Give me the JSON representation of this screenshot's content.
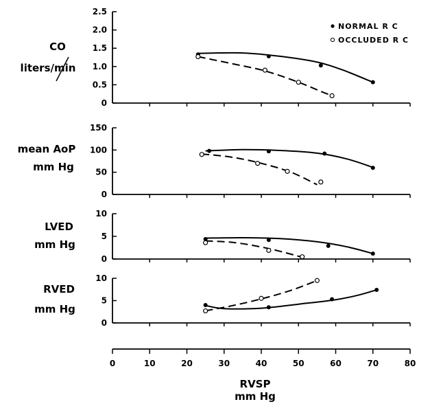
{
  "chart_data": {
    "type": "line",
    "legend": {
      "placement": "top-right",
      "entries": [
        "NORMAL R C",
        "OCCLUDED R C"
      ]
    },
    "x_axis": {
      "label_line1": "RVSP",
      "label_line2": "mm Hg",
      "ticks": [
        "0",
        "10",
        "20",
        "30",
        "40",
        "50",
        "60",
        "70",
        "80"
      ],
      "range": [
        0,
        80
      ]
    },
    "panels": [
      {
        "id": "co",
        "ylabel_line1": "CO",
        "ylabel_line2": "liters/min",
        "ylim": [
          0,
          2.5
        ],
        "yticks": [
          "0",
          "0.5",
          "1.0",
          "1.5",
          "2.0",
          "2.5"
        ],
        "series": [
          {
            "name": "NORMAL R C",
            "marker": "filled",
            "dash": false,
            "points": [
              [
                23,
                1.33
              ],
              [
                42,
                1.28
              ],
              [
                56,
                1.03
              ],
              [
                70,
                0.57
              ]
            ],
            "curve": [
              [
                23,
                1.36
              ],
              [
                35,
                1.37
              ],
              [
                45,
                1.28
              ],
              [
                55,
                1.12
              ],
              [
                62,
                0.9
              ],
              [
                70,
                0.57
              ]
            ]
          },
          {
            "name": "OCCLUDED R C",
            "marker": "open",
            "dash": true,
            "points": [
              [
                23,
                1.27
              ],
              [
                41,
                0.9
              ],
              [
                50,
                0.57
              ],
              [
                59,
                0.2
              ]
            ],
            "curve": [
              [
                23,
                1.27
              ],
              [
                32,
                1.08
              ],
              [
                41,
                0.88
              ],
              [
                50,
                0.57
              ],
              [
                56,
                0.32
              ],
              [
                59,
                0.2
              ]
            ]
          }
        ]
      },
      {
        "id": "aop",
        "ylabel_line1": "mean AoP",
        "ylabel_line2": "mm Hg",
        "ylim": [
          0,
          150
        ],
        "yticks": [
          "0",
          "50",
          "100",
          "150"
        ],
        "series": [
          {
            "name": "NORMAL R C",
            "marker": "filled",
            "dash": false,
            "points": [
              [
                26,
                98
              ],
              [
                42,
                97
              ],
              [
                57,
                92
              ],
              [
                70,
                60
              ]
            ],
            "curve": [
              [
                25,
                98
              ],
              [
                35,
                101
              ],
              [
                45,
                99
              ],
              [
                55,
                93
              ],
              [
                63,
                80
              ],
              [
                70,
                61
              ]
            ]
          },
          {
            "name": "OCCLUDED R C",
            "marker": "open",
            "dash": true,
            "points": [
              [
                24,
                90
              ],
              [
                39,
                70
              ],
              [
                47,
                52
              ],
              [
                56,
                28
              ]
            ],
            "curve": [
              [
                24,
                91
              ],
              [
                32,
                84
              ],
              [
                40,
                70
              ],
              [
                48,
                50
              ],
              [
                55,
                22
              ]
            ]
          }
        ]
      },
      {
        "id": "lved",
        "ylabel_line1": "LVED",
        "ylabel_line2": "mm Hg",
        "ylim": [
          0,
          10
        ],
        "yticks": [
          "0",
          "5",
          "10"
        ],
        "series": [
          {
            "name": "NORMAL R C",
            "marker": "filled",
            "dash": false,
            "points": [
              [
                25,
                4.4
              ],
              [
                42,
                4.2
              ],
              [
                58,
                2.9
              ],
              [
                70,
                1.2
              ]
            ],
            "curve": [
              [
                25,
                4.6
              ],
              [
                35,
                4.7
              ],
              [
                45,
                4.5
              ],
              [
                55,
                3.8
              ],
              [
                63,
                2.7
              ],
              [
                70,
                1.2
              ]
            ]
          },
          {
            "name": "OCCLUDED R C",
            "marker": "open",
            "dash": true,
            "points": [
              [
                25,
                3.6
              ],
              [
                42,
                1.9
              ],
              [
                51,
                0.5
              ]
            ],
            "curve": [
              [
                25,
                4.0
              ],
              [
                33,
                3.6
              ],
              [
                42,
                2.3
              ],
              [
                51,
                0.4
              ]
            ]
          }
        ]
      },
      {
        "id": "rved",
        "ylabel_line1": "RVED",
        "ylabel_line2": "mm Hg",
        "ylim": [
          0,
          10
        ],
        "yticks": [
          "0",
          "5",
          "10"
        ],
        "series": [
          {
            "name": "NORMAL R C",
            "marker": "filled",
            "dash": false,
            "points": [
              [
                25,
                4.0
              ],
              [
                42,
                3.5
              ],
              [
                59,
                5.3
              ],
              [
                71,
                7.4
              ]
            ],
            "curve": [
              [
                25,
                3.9
              ],
              [
                30,
                3.2
              ],
              [
                40,
                3.3
              ],
              [
                50,
                4.2
              ],
              [
                60,
                5.2
              ],
              [
                66,
                6.2
              ],
              [
                71,
                7.4
              ]
            ]
          },
          {
            "name": "OCCLUDED R C",
            "marker": "open",
            "dash": true,
            "points": [
              [
                25,
                2.7
              ],
              [
                40,
                5.5
              ],
              [
                55,
                9.5
              ]
            ],
            "curve": [
              [
                25,
                2.7
              ],
              [
                33,
                4.0
              ],
              [
                41,
                5.6
              ],
              [
                48,
                7.3
              ],
              [
                55,
                9.5
              ]
            ]
          }
        ]
      }
    ]
  }
}
